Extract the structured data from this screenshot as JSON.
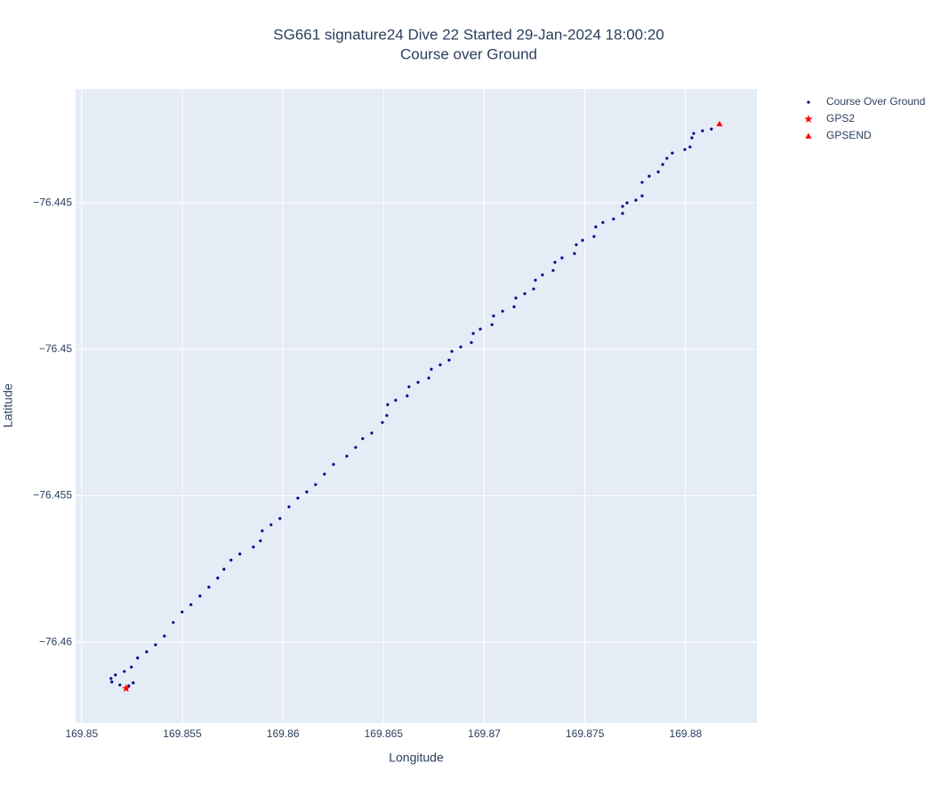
{
  "chart_data": {
    "type": "scatter",
    "title": "SG661 signature24 Dive 22 Started 29-Jan-2024 18:00:20",
    "subtitle": "Course over Ground",
    "x_label": "Longitude",
    "y_label": "Latitude",
    "xlim": [
      169.8497,
      169.88354
    ],
    "ylim": [
      -76.46276,
      -76.44111
    ],
    "xticks": [
      169.85,
      169.855,
      169.86,
      169.865,
      169.87,
      169.875,
      169.88
    ],
    "yticks": [
      {
        "value": -76.445,
        "label": "−76.445"
      },
      {
        "value": -76.45,
        "label": "−76.45"
      },
      {
        "value": -76.455,
        "label": "−76.455"
      },
      {
        "value": -76.46,
        "label": "−76.46"
      }
    ],
    "grid": true,
    "series": [
      {
        "name": "Course Over Ground",
        "color": "#00008b",
        "marker": "dot",
        "x": [
          169.85256,
          169.85234,
          169.8519,
          169.8515,
          169.85146,
          169.85168,
          169.85212,
          169.85247,
          169.85278,
          169.85323,
          169.85367,
          169.85411,
          169.85455,
          169.85499,
          169.85543,
          169.85588,
          169.85632,
          169.85676,
          169.85707,
          169.85742,
          169.85786,
          169.85853,
          169.85888,
          169.85897,
          169.85941,
          169.85985,
          169.8603,
          169.86074,
          169.86118,
          169.86162,
          169.86206,
          169.86251,
          169.86317,
          169.86361,
          169.86396,
          169.86441,
          169.86494,
          169.86516,
          169.8652,
          169.8656,
          169.86617,
          169.86626,
          169.86671,
          169.86724,
          169.86737,
          169.86781,
          169.86825,
          169.86839,
          169.86883,
          169.86936,
          169.86945,
          169.8698,
          169.87038,
          169.87046,
          169.87091,
          169.87148,
          169.87157,
          169.87201,
          169.87245,
          169.87254,
          169.87289,
          169.87342,
          169.87351,
          169.87386,
          169.87448,
          169.87457,
          169.87488,
          169.87545,
          169.87554,
          169.87589,
          169.87642,
          169.87687,
          169.87687,
          169.87709,
          169.87753,
          169.87784,
          169.87784,
          169.87819,
          169.87864,
          169.87886,
          169.87907,
          169.87934,
          169.87996,
          169.88022,
          169.88031,
          169.8804,
          169.88084,
          169.88128
        ],
        "y": [
          -76.46139,
          -76.46149,
          -76.46146,
          -76.46136,
          -76.46124,
          -76.46112,
          -76.461,
          -76.46085,
          -76.46054,
          -76.46033,
          -76.46009,
          -76.45979,
          -76.45933,
          -76.45897,
          -76.45872,
          -76.45842,
          -76.45812,
          -76.45781,
          -76.45751,
          -76.4572,
          -76.45699,
          -76.45675,
          -76.45654,
          -76.4562,
          -76.45599,
          -76.45578,
          -76.45538,
          -76.45508,
          -76.45487,
          -76.45462,
          -76.45426,
          -76.45393,
          -76.45365,
          -76.45335,
          -76.45305,
          -76.45286,
          -76.4525,
          -76.45226,
          -76.45189,
          -76.45174,
          -76.45159,
          -76.45128,
          -76.45113,
          -76.45098,
          -76.45068,
          -76.45053,
          -76.45037,
          -76.45007,
          -76.44992,
          -76.44977,
          -76.44946,
          -76.44931,
          -76.44916,
          -76.44886,
          -76.4487,
          -76.44855,
          -76.44825,
          -76.4481,
          -76.44794,
          -76.44764,
          -76.44746,
          -76.44731,
          -76.44703,
          -76.44688,
          -76.44673,
          -76.44643,
          -76.44628,
          -76.44615,
          -76.44582,
          -76.44567,
          -76.44555,
          -76.44536,
          -76.44512,
          -76.445,
          -76.44491,
          -76.44476,
          -76.4443,
          -76.44409,
          -76.44394,
          -76.44369,
          -76.44348,
          -76.4433,
          -76.44318,
          -76.44309,
          -76.44278,
          -76.44263,
          -76.44254,
          -76.44248
        ]
      },
      {
        "name": "GPS2",
        "color": "#ff0000",
        "marker": "star",
        "x": [
          169.85221
        ],
        "y": [
          -76.46158
        ]
      },
      {
        "name": "GPSEND",
        "color": "#ff0000",
        "marker": "triangle-up",
        "x": [
          169.88168
        ],
        "y": [
          -76.4423
        ]
      }
    ]
  }
}
